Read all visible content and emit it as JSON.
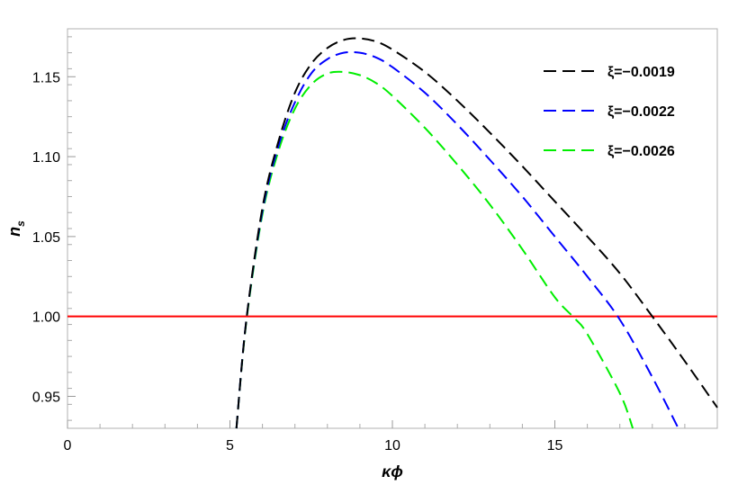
{
  "chart_data": {
    "type": "line",
    "title": "",
    "xlabel": "κϕ",
    "ylabel_main": "n",
    "ylabel_sub": "s",
    "xlim": [
      0,
      20
    ],
    "ylim": [
      0.93,
      1.18
    ],
    "x_ticks": [
      0,
      5,
      10,
      15
    ],
    "x_tick_labels": [
      "0",
      "5",
      "10",
      "15"
    ],
    "y_ticks": [
      0.95,
      1.0,
      1.05,
      1.1,
      1.15
    ],
    "y_tick_labels": [
      "0.95",
      "1.00",
      "1.05",
      "1.10",
      "1.15"
    ],
    "grid": false,
    "legend_position": "top-right",
    "reference_line": {
      "y": 1.0,
      "color": "#ff0000"
    },
    "series": [
      {
        "name": "ξ=−0.0019",
        "color": "#000000",
        "dash": "dashed",
        "x": [
          5.2,
          5.5,
          6.0,
          6.5,
          7.0,
          7.5,
          8.0,
          8.5,
          9.0,
          9.5,
          10.0,
          11.0,
          12.0,
          13.0,
          14.0,
          15.0,
          16.0,
          17.0,
          18.0,
          19.0,
          20.0
        ],
        "y": [
          0.93,
          0.997,
          1.068,
          1.11,
          1.14,
          1.158,
          1.168,
          1.173,
          1.174,
          1.172,
          1.167,
          1.153,
          1.135,
          1.115,
          1.094,
          1.072,
          1.05,
          1.027,
          1.0,
          0.972,
          0.943
        ]
      },
      {
        "name": "ξ=−0.0022",
        "color": "#0000ff",
        "dash": "dashed",
        "x": [
          5.2,
          5.5,
          6.0,
          6.5,
          7.0,
          7.5,
          8.0,
          8.5,
          9.0,
          9.5,
          10.0,
          11.0,
          12.0,
          13.0,
          14.0,
          15.0,
          16.0,
          17.0,
          18.0,
          18.8
        ],
        "y": [
          0.93,
          0.997,
          1.066,
          1.107,
          1.134,
          1.152,
          1.161,
          1.165,
          1.165,
          1.162,
          1.156,
          1.14,
          1.12,
          1.098,
          1.075,
          1.05,
          1.025,
          0.998,
          0.962,
          0.93
        ]
      },
      {
        "name": "ξ=−0.0026",
        "color": "#00ee00",
        "dash": "dashed",
        "x": [
          5.2,
          5.5,
          6.0,
          6.5,
          7.0,
          7.5,
          8.0,
          8.5,
          9.0,
          9.5,
          10.0,
          11.0,
          12.0,
          13.0,
          14.0,
          15.0,
          15.6,
          16.0,
          17.0,
          17.4
        ],
        "y": [
          0.93,
          0.996,
          1.064,
          1.104,
          1.13,
          1.145,
          1.152,
          1.153,
          1.151,
          1.146,
          1.138,
          1.118,
          1.095,
          1.07,
          1.042,
          1.012,
          0.999,
          0.989,
          0.952,
          0.93
        ]
      }
    ]
  }
}
